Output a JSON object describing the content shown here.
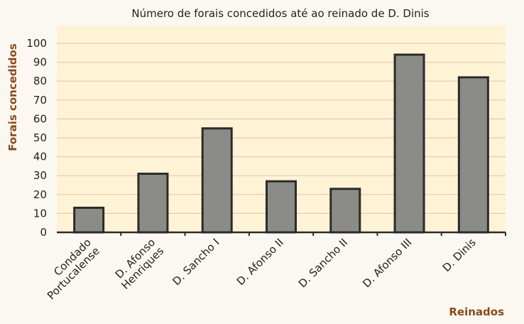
{
  "chart_data": {
    "type": "bar",
    "title": "Número de forais concedidos até ao reinado de D. Dinis",
    "xlabel": "Reinados",
    "ylabel": "Forais concedidos",
    "categories": [
      "Condado Portucalense",
      "D. Afonso Henriques",
      "D. Sancho I",
      "D. Afonso II",
      "D. Sancho II",
      "D. Afonso III",
      "D. Dinis"
    ],
    "category_lines": [
      [
        "Condado",
        "Portucalense"
      ],
      [
        "D. Afonso",
        "Henriques"
      ],
      [
        "D. Sancho I"
      ],
      [
        "D. Afonso II"
      ],
      [
        "D. Sancho II"
      ],
      [
        "D. Afonso III"
      ],
      [
        "D. Dinis"
      ]
    ],
    "values": [
      13,
      31,
      55,
      27,
      23,
      94,
      82
    ],
    "ylim": [
      0,
      100
    ],
    "yticks": [
      0,
      10,
      20,
      30,
      40,
      50,
      60,
      70,
      80,
      90,
      100
    ],
    "grid": true,
    "colors": {
      "background": "#fbf8f1",
      "plot_background": "#fff3d6",
      "grid": "#e9c7b3",
      "bar_fill": "#8b8c87",
      "bar_stroke": "#2b2b2b",
      "axis_label": "#8a4a1c"
    }
  }
}
